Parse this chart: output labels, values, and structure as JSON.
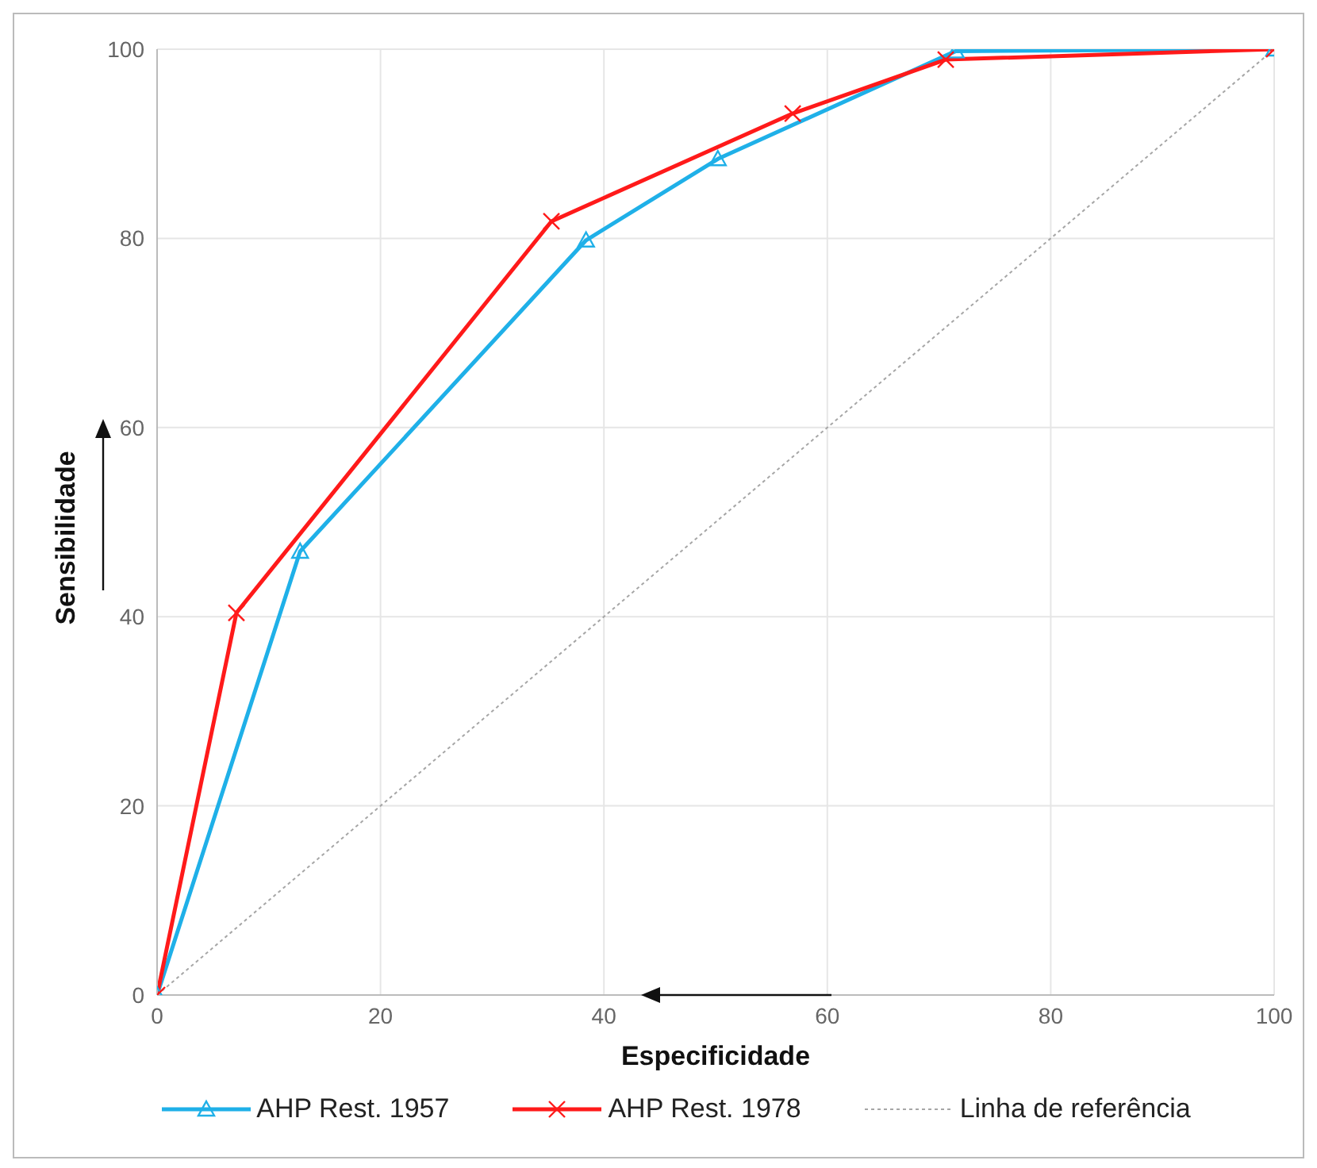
{
  "chart_data": {
    "type": "line",
    "xlabel": "Especificidade",
    "ylabel": "Sensibilidade",
    "xlim": [
      0,
      100
    ],
    "xticks": [
      0,
      20,
      40,
      60,
      80,
      100
    ],
    "ylim": [
      0,
      100
    ],
    "yticks": [
      0,
      20,
      40,
      60,
      80,
      100
    ],
    "grid": true,
    "legend": "bottom",
    "series": [
      {
        "name": "AHP Rest. 1957",
        "color": "#1fb0e8",
        "marker": "triangle",
        "line_style": "solid",
        "x": [
          0,
          12.8,
          38.4,
          50.2,
          71.5,
          100
        ],
        "values": [
          0,
          46.9,
          79.8,
          88.4,
          99.8,
          100
        ]
      },
      {
        "name": "AHP Rest. 1978",
        "color": "#ff1a1a",
        "marker": "cross",
        "line_style": "solid",
        "x": [
          0,
          7.1,
          35.3,
          56.9,
          70.6,
          100
        ],
        "values": [
          0,
          40.4,
          81.8,
          93.2,
          98.9,
          100
        ]
      },
      {
        "name": "Linha de referência",
        "color": "#a6a6a6",
        "marker": "none",
        "line_style": "dotted",
        "x": [
          0,
          100
        ],
        "values": [
          0,
          100
        ]
      }
    ]
  }
}
